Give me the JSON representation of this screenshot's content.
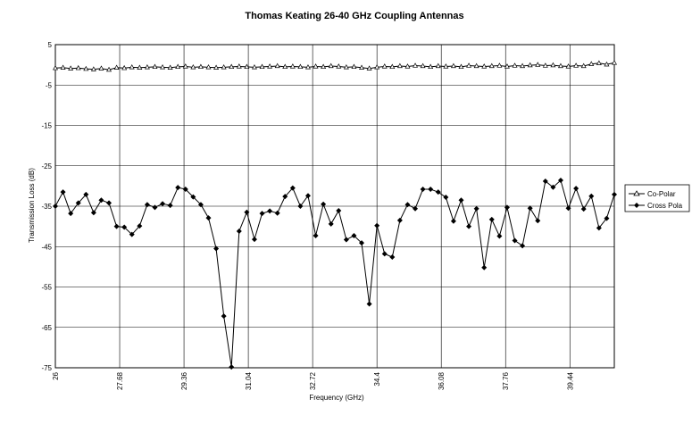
{
  "chart_data": {
    "type": "line",
    "title": "Thomas Keating 26-40 GHz Coupling Antennas",
    "xlabel": "Frequency (GHz)",
    "ylabel": "Transmission Loss (dB)",
    "xlim": [
      26,
      40.6
    ],
    "ylim": [
      -75,
      5
    ],
    "xticks": [
      "26",
      "27.68",
      "29.36",
      "31.04",
      "32.72",
      "34.4",
      "36.08",
      "37.76",
      "39.44"
    ],
    "yticks": [
      "5",
      "-5",
      "-15",
      "-25",
      "-35",
      "-45",
      "-55",
      "-65",
      "-75"
    ],
    "grid": true,
    "legend_position": "right",
    "x": [
      26.0,
      26.2,
      26.4,
      26.6,
      26.8,
      27.0,
      27.2,
      27.4,
      27.6,
      27.8,
      28.0,
      28.2,
      28.4,
      28.6,
      28.8,
      29.0,
      29.2,
      29.4,
      29.6,
      29.8,
      30.0,
      30.2,
      30.4,
      30.6,
      30.8,
      31.0,
      31.2,
      31.4,
      31.6,
      31.8,
      32.0,
      32.2,
      32.4,
      32.6,
      32.8,
      33.0,
      33.2,
      33.4,
      33.6,
      33.8,
      34.0,
      34.2,
      34.4,
      34.6,
      34.8,
      35.0,
      35.2,
      35.4,
      35.6,
      35.8,
      36.0,
      36.2,
      36.4,
      36.6,
      36.8,
      37.0,
      37.2,
      37.4,
      37.6,
      37.8,
      38.0,
      38.2,
      38.4,
      38.6,
      38.8,
      39.0,
      39.2,
      39.4,
      39.6,
      39.8,
      40.0,
      40.2,
      40.4,
      40.6
    ],
    "series": [
      {
        "name": "Co-Polar",
        "color": "#000000",
        "marker": "triangle-open",
        "values": [
          -0.8,
          -0.7,
          -0.9,
          -0.8,
          -1.0,
          -1.1,
          -0.9,
          -1.2,
          -0.7,
          -0.8,
          -0.6,
          -0.7,
          -0.6,
          -0.5,
          -0.6,
          -0.7,
          -0.5,
          -0.4,
          -0.6,
          -0.5,
          -0.6,
          -0.7,
          -0.6,
          -0.5,
          -0.4,
          -0.5,
          -0.6,
          -0.5,
          -0.4,
          -0.3,
          -0.5,
          -0.4,
          -0.5,
          -0.6,
          -0.4,
          -0.5,
          -0.3,
          -0.4,
          -0.6,
          -0.5,
          -0.7,
          -0.9,
          -0.6,
          -0.4,
          -0.5,
          -0.3,
          -0.4,
          -0.2,
          -0.3,
          -0.5,
          -0.3,
          -0.4,
          -0.3,
          -0.5,
          -0.2,
          -0.3,
          -0.4,
          -0.3,
          -0.2,
          -0.4,
          -0.2,
          -0.3,
          -0.1,
          0.0,
          -0.2,
          -0.1,
          -0.3,
          -0.4,
          -0.2,
          -0.3,
          0.2,
          0.4,
          0.1,
          0.5
        ]
      },
      {
        "name": "Cross Pola",
        "color": "#000000",
        "marker": "diamond-filled",
        "values": [
          -35.0,
          -31.5,
          -36.8,
          -34.2,
          -32.1,
          -36.6,
          -33.5,
          -34.2,
          -40.0,
          -40.2,
          -42.0,
          -39.9,
          -34.6,
          -35.3,
          -34.4,
          -34.8,
          -30.4,
          -30.8,
          -32.7,
          -34.6,
          -37.9,
          -45.5,
          -62.2,
          -74.8,
          -41.2,
          -36.5,
          -43.2,
          -36.8,
          -36.2,
          -36.7,
          -32.6,
          -30.5,
          -35.0,
          -32.4,
          -42.3,
          -34.5,
          -39.4,
          -36.1,
          -43.3,
          -42.3,
          -44.1,
          -59.2,
          -39.8,
          -46.8,
          -47.6,
          -38.5,
          -34.6,
          -35.6,
          -30.8,
          -30.8,
          -31.5,
          -32.8,
          -38.7,
          -33.5,
          -40.0,
          -35.6,
          -50.2,
          -38.3,
          -42.4,
          -35.3,
          -43.5,
          -44.8,
          -35.5,
          -38.6,
          -28.8,
          -30.3,
          -28.6,
          -35.5,
          -30.6,
          -35.7,
          -32.5,
          -40.4,
          -38.0,
          -32.1
        ]
      }
    ]
  }
}
